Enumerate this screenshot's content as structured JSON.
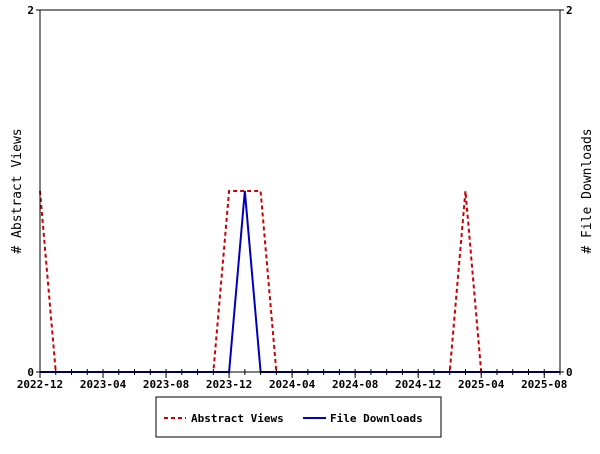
{
  "chart_data": {
    "type": "line",
    "xlabel": "",
    "ylabel_left": "# Abstract Views",
    "ylabel_right": "# File Downloads",
    "x": [
      "2022-12",
      "2023-01",
      "2023-02",
      "2023-03",
      "2023-04",
      "2023-05",
      "2023-06",
      "2023-07",
      "2023-08",
      "2023-09",
      "2023-10",
      "2023-11",
      "2023-12",
      "2024-01",
      "2024-02",
      "2024-03",
      "2024-04",
      "2024-05",
      "2024-06",
      "2024-07",
      "2024-08",
      "2024-09",
      "2024-10",
      "2024-11",
      "2024-12",
      "2025-01",
      "2025-02",
      "2025-03",
      "2025-04",
      "2025-05",
      "2025-06",
      "2025-07",
      "2025-08",
      "2025-09"
    ],
    "x_tick_labels": [
      "2022-12",
      "2023-04",
      "2023-08",
      "2023-12",
      "2024-04",
      "2024-08",
      "2024-12",
      "2025-04",
      "2025-08"
    ],
    "ylim_left": [
      0,
      2
    ],
    "ylim_right": [
      0,
      2
    ],
    "y_tick_labels_left": [
      "0",
      "2"
    ],
    "y_tick_labels_right": [
      "0",
      "2"
    ],
    "grid": false,
    "legend_position": "bottom",
    "series": [
      {
        "name": "Abstract Views",
        "axis": "left",
        "color": "#cc0000",
        "style": "dashed",
        "values": [
          1,
          0,
          0,
          0,
          0,
          0,
          0,
          0,
          0,
          0,
          0,
          0,
          1,
          1,
          1,
          0,
          0,
          0,
          0,
          0,
          0,
          0,
          0,
          0,
          0,
          0,
          0,
          1,
          0,
          0,
          0,
          0,
          0,
          0
        ]
      },
      {
        "name": "File Downloads",
        "axis": "right",
        "color": "#0000bb",
        "style": "solid",
        "values": [
          0,
          0,
          0,
          0,
          0,
          0,
          0,
          0,
          0,
          0,
          0,
          0,
          0,
          1,
          0,
          0,
          0,
          0,
          0,
          0,
          0,
          0,
          0,
          0,
          0,
          0,
          0,
          0,
          0,
          0,
          0,
          0,
          0,
          0
        ]
      }
    ]
  }
}
